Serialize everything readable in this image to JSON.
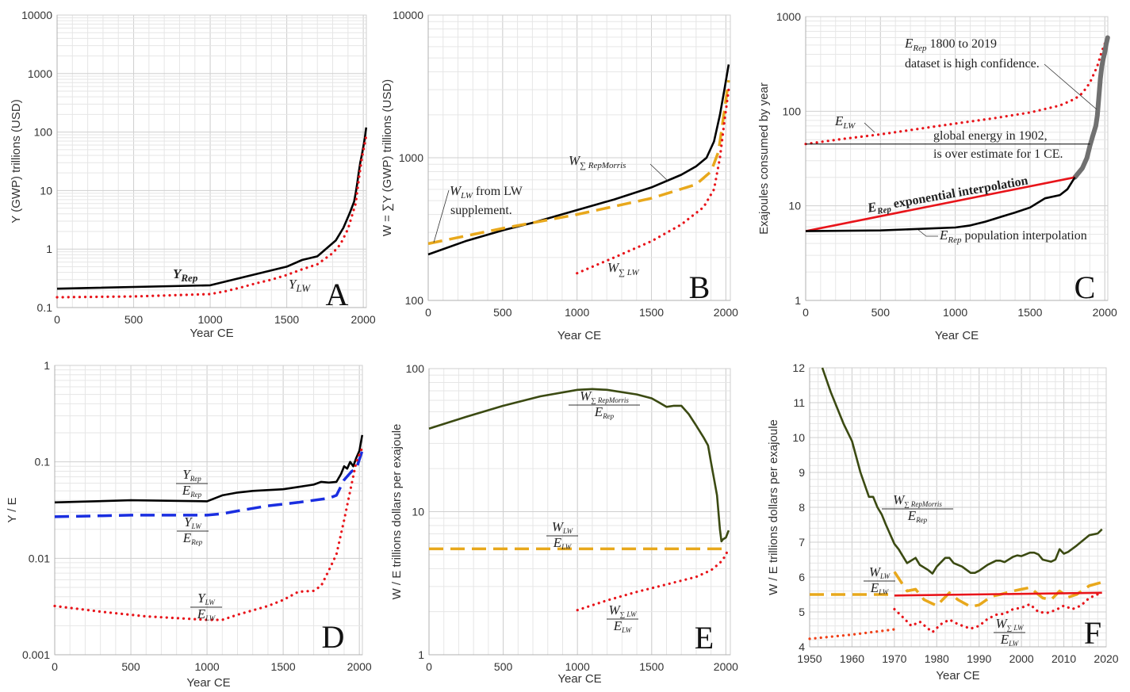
{
  "chart_data": [
    {
      "id": "A",
      "type": "line",
      "panel_label": "A",
      "xlabel": "Year CE",
      "ylabel": "Y (GWP) trillions (USD)",
      "yscale": "log",
      "xlim": [
        0,
        2020
      ],
      "ylim": [
        0.1,
        10000
      ],
      "xticks": [
        "0",
        "500",
        "1000",
        "1500",
        "2000"
      ],
      "yticks": [
        "0.1",
        "1",
        "10",
        "100",
        "1000",
        "10000"
      ],
      "grid": true,
      "series": [
        {
          "name": "Y_Rep",
          "label": "Y",
          "label_sub": "Rep",
          "color": "#000000",
          "style": "solid",
          "x": [
            0,
            1000,
            1500,
            1600,
            1700,
            1820,
            1870,
            1900,
            1913,
            1940,
            1950,
            1960,
            1970,
            1980,
            1990,
            2000,
            2010,
            2019
          ],
          "y": [
            0.21,
            0.24,
            0.5,
            0.65,
            0.75,
            1.4,
            2.3,
            3.5,
            4.2,
            6.5,
            9,
            13,
            20,
            30,
            40,
            55,
            80,
            120
          ]
        },
        {
          "name": "Y_LW",
          "label": "Y",
          "label_sub": "LW",
          "color": "#e8141a",
          "style": "dotted",
          "x": [
            0,
            500,
            1000,
            1100,
            1200,
            1300,
            1400,
            1500,
            1600,
            1700,
            1800,
            1850,
            1900,
            1950,
            1970,
            1990,
            2019
          ],
          "y": [
            0.15,
            0.155,
            0.17,
            0.19,
            0.22,
            0.26,
            0.3,
            0.36,
            0.45,
            0.55,
            0.85,
            1.2,
            2.2,
            6,
            15,
            35,
            85
          ]
        }
      ]
    },
    {
      "id": "B",
      "type": "line",
      "panel_label": "B",
      "xlabel": "Year CE",
      "ylabel": "W = ∑Y (GWP) trillions (USD)",
      "yscale": "log",
      "xlim": [
        0,
        2030
      ],
      "ylim": [
        100,
        10000
      ],
      "xticks": [
        "0",
        "500",
        "1000",
        "1500",
        "2000"
      ],
      "yticks": [
        "100",
        "1000",
        "10000"
      ],
      "grid": true,
      "annotations": [
        {
          "text_var": "W",
          "text_sub": "LW",
          "text_rest": " from ",
          "text_var2": "LW",
          "line2": "supplement."
        },
        {
          "text_var": "W",
          "text_sub": "∑ RepMorris"
        },
        {
          "text_var": "W",
          "text_sub": "∑ LW"
        }
      ],
      "series": [
        {
          "name": "W_sum_RepMorris",
          "color": "#000000",
          "style": "solid",
          "x": [
            0,
            250,
            500,
            700,
            1000,
            1250,
            1500,
            1700,
            1800,
            1870,
            1920,
            1960,
            1990,
            2019
          ],
          "y": [
            210,
            260,
            310,
            350,
            430,
            510,
            620,
            760,
            870,
            1000,
            1300,
            2000,
            3000,
            4500
          ]
        },
        {
          "name": "W_LW",
          "color": "#e8a81c",
          "style": "dashed",
          "x": [
            0,
            500,
            1000,
            1500,
            1800,
            1900,
            1950,
            1980,
            2019
          ],
          "y": [
            250,
            320,
            400,
            520,
            650,
            800,
            1100,
            1800,
            3500
          ]
        },
        {
          "name": "W_sum_LW",
          "color": "#e8141a",
          "style": "dotted",
          "x": [
            1000,
            1250,
            1500,
            1700,
            1850,
            1920,
            1960,
            1990,
            2019
          ],
          "y": [
            155,
            200,
            260,
            340,
            450,
            600,
            1000,
            1800,
            3000
          ]
        }
      ]
    },
    {
      "id": "C",
      "type": "line",
      "panel_label": "C",
      "xlabel": "Year CE",
      "ylabel": "Exajoules consumed by year",
      "yscale": "log",
      "xlim": [
        0,
        2020
      ],
      "ylim": [
        1,
        1000
      ],
      "xticks": [
        "0",
        "500",
        "1000",
        "1500",
        "2000"
      ],
      "yticks": [
        "1",
        "10",
        "100",
        "1000"
      ],
      "grid": true,
      "annotations": [
        {
          "text_var": "E",
          "text_sub": "Rep",
          "text_rest": " 1800 to 2019",
          "line2": "dataset is high confidence."
        },
        {
          "text_var": "E",
          "text_sub": "LW"
        },
        {
          "text": "global energy in 1902,",
          "line2": "is over estimate for 1 CE."
        },
        {
          "text_var": "E",
          "text_sub": "Rep",
          "text_rest": " exponential interpolation"
        },
        {
          "text_var": "E",
          "text_sub": "Rep",
          "text_rest": "  population interpolation"
        }
      ],
      "series": [
        {
          "name": "E_LW",
          "color": "#e8141a",
          "style": "dotted",
          "x": [
            0,
            250,
            500,
            750,
            1000,
            1250,
            1500,
            1700,
            1800,
            1850,
            1900,
            1950,
            1980,
            2019
          ],
          "y": [
            45,
            51,
            57,
            65,
            74,
            84,
            97,
            115,
            135,
            155,
            200,
            300,
            430,
            620
          ]
        },
        {
          "name": "E_Rep_high_confidence",
          "color": "#707070",
          "style": "thick",
          "x": [
            1800,
            1850,
            1880,
            1900,
            1920,
            1940,
            1950,
            1960,
            1970,
            1980,
            1990,
            2000,
            2010,
            2019
          ],
          "y": [
            20,
            25,
            32,
            43,
            55,
            70,
            90,
            140,
            220,
            300,
            360,
            420,
            520,
            600
          ]
        },
        {
          "name": "E_Rep_exponential_interpolation",
          "color": "#e8141a",
          "style": "solid",
          "x": [
            0,
            1800
          ],
          "y": [
            5.4,
            20
          ]
        },
        {
          "name": "E_Rep_population_interpolation",
          "color": "#000000",
          "style": "solid",
          "x": [
            0,
            500,
            1000,
            1100,
            1200,
            1300,
            1400,
            1500,
            1600,
            1700,
            1750,
            1800
          ],
          "y": [
            5.4,
            5.5,
            5.9,
            6.2,
            6.8,
            7.6,
            8.5,
            9.6,
            12,
            13,
            15,
            20
          ]
        },
        {
          "name": "global_energy_1902",
          "color": "#000000",
          "style": "thin",
          "x": [
            0,
            1902
          ],
          "y": [
            45,
            45
          ]
        }
      ]
    },
    {
      "id": "D",
      "type": "line",
      "panel_label": "D",
      "xlabel": "Year CE",
      "ylabel": "Y / E",
      "yscale": "log",
      "xlim": [
        0,
        2020
      ],
      "ylim": [
        0.001,
        1
      ],
      "xticks": [
        "0",
        "500",
        "1000",
        "1500",
        "2000"
      ],
      "yticks": [
        "0.001",
        "0.01",
        "0.1",
        "1"
      ],
      "grid": true,
      "annotations": [
        {
          "num_var": "Y",
          "num_sub": "Rep",
          "den_var": "E",
          "den_sub": "Rep"
        },
        {
          "num_var": "Y",
          "num_sub": "LW",
          "den_var": "E",
          "den_sub": "Rep"
        },
        {
          "num_var": "Y",
          "num_sub": "LW",
          "den_var": "E",
          "den_sub": "LW"
        }
      ],
      "series": [
        {
          "name": "Y_Rep/E_Rep",
          "color": "#000000",
          "style": "solid",
          "x": [
            0,
            500,
            1000,
            1100,
            1200,
            1300,
            1500,
            1600,
            1700,
            1750,
            1800,
            1850,
            1880,
            1900,
            1920,
            1940,
            1960,
            1980,
            2000,
            2019
          ],
          "y": [
            0.038,
            0.04,
            0.039,
            0.045,
            0.048,
            0.05,
            0.052,
            0.055,
            0.058,
            0.062,
            0.061,
            0.062,
            0.075,
            0.09,
            0.085,
            0.1,
            0.09,
            0.11,
            0.13,
            0.19
          ]
        },
        {
          "name": "Y_LW/E_Rep",
          "color": "#1a2ee0",
          "style": "dashed",
          "x": [
            0,
            500,
            1000,
            1100,
            1200,
            1400,
            1600,
            1800,
            1850,
            1900,
            1950,
            1980,
            2019
          ],
          "y": [
            0.027,
            0.028,
            0.028,
            0.029,
            0.031,
            0.035,
            0.038,
            0.042,
            0.045,
            0.065,
            0.08,
            0.085,
            0.13
          ]
        },
        {
          "name": "Y_LW/E_LW",
          "color": "#e8141a",
          "style": "dotted",
          "x": [
            0,
            300,
            600,
            1000,
            1100,
            1200,
            1400,
            1500,
            1600,
            1700,
            1750,
            1800,
            1850,
            1900,
            1950,
            1980,
            2019
          ],
          "y": [
            0.0032,
            0.0028,
            0.0025,
            0.0023,
            0.0023,
            0.0026,
            0.0032,
            0.0037,
            0.0045,
            0.0046,
            0.0052,
            0.0075,
            0.011,
            0.025,
            0.06,
            0.1,
            0.14
          ]
        }
      ]
    },
    {
      "id": "E",
      "type": "line",
      "panel_label": "E",
      "xlabel": "Year CE",
      "ylabel": "W / E  trillions dollars per exajoule",
      "yscale": "log",
      "xlim": [
        0,
        2030
      ],
      "ylim": [
        1,
        100
      ],
      "xticks": [
        "0",
        "500",
        "1000",
        "1500",
        "2000"
      ],
      "yticks": [
        "1",
        "10",
        "100"
      ],
      "grid": true,
      "annotations": [
        {
          "num_var": "W",
          "num_sub": "∑ RepMorris",
          "den_var": "E",
          "den_sub": "Rep"
        },
        {
          "num_var": "W",
          "num_sub": "LW",
          "den_var": "E",
          "den_sub": "LW"
        },
        {
          "num_var": "W",
          "num_sub": "∑ LW",
          "den_var": "E",
          "den_sub": "LW"
        }
      ],
      "series": [
        {
          "name": "W_sum_RepMorris/E_Rep",
          "color": "#3b4a12",
          "style": "solid",
          "x": [
            0,
            250,
            500,
            750,
            1000,
            1100,
            1200,
            1400,
            1500,
            1550,
            1600,
            1650,
            1700,
            1750,
            1800,
            1850,
            1880,
            1900,
            1920,
            1940,
            1960,
            1970,
            1980,
            2000,
            2019
          ],
          "y": [
            38,
            46,
            55,
            64,
            71,
            72,
            71,
            66,
            62,
            58,
            54,
            55,
            55,
            48,
            40,
            33,
            29,
            22,
            17,
            13,
            7.5,
            6.2,
            6.4,
            6.6,
            7.4
          ]
        },
        {
          "name": "W_LW/E_LW",
          "color": "#e8a81c",
          "style": "dashed",
          "x": [
            0,
            2019
          ],
          "y": [
            5.5,
            5.5
          ]
        },
        {
          "name": "W_sum_LW/E_LW",
          "color": "#e8141a",
          "style": "dotted",
          "x": [
            1000,
            1200,
            1400,
            1600,
            1800,
            1900,
            1950,
            1970,
            1990,
            2019
          ],
          "y": [
            2.05,
            2.4,
            2.75,
            3.1,
            3.5,
            3.9,
            4.3,
            4.5,
            4.8,
            5.5
          ]
        }
      ]
    },
    {
      "id": "F",
      "type": "line",
      "panel_label": "F",
      "xlabel": "Year CE",
      "ylabel": "W / E  trillions dollars per exajoule",
      "yscale": "linear",
      "xlim": [
        1950,
        2020
      ],
      "ylim": [
        4,
        12
      ],
      "xticks": [
        "1950",
        "1960",
        "1970",
        "1980",
        "1990",
        "2000",
        "2010",
        "2020"
      ],
      "yticks": [
        "4",
        "5",
        "6",
        "7",
        "8",
        "9",
        "10",
        "11",
        "12"
      ],
      "grid": true,
      "annotations": [
        {
          "num_var": "W",
          "num_sub": "∑ RepMorris",
          "den_var": "E",
          "den_sub": "Rep"
        },
        {
          "num_var": "W",
          "num_sub": "LW",
          "den_var": "E",
          "den_sub": "LW"
        },
        {
          "num_var": "W",
          "num_sub": "∑ LW",
          "den_var": "E",
          "den_sub": "LW"
        }
      ],
      "series": [
        {
          "name": "W_sum_RepMorris/E_Rep",
          "color": "#3b4a12",
          "style": "solid",
          "x": [
            1953,
            1955,
            1958,
            1960,
            1962,
            1964,
            1965,
            1966,
            1967,
            1968,
            1970,
            1971,
            1972,
            1973,
            1975,
            1976,
            1978,
            1979,
            1980,
            1982,
            1983,
            1984,
            1986,
            1988,
            1989,
            1990,
            1992,
            1994,
            1995,
            1996,
            1998,
            1999,
            2000,
            2002,
            2003,
            2004,
            2005,
            2007,
            2008,
            2009,
            2010,
            2011,
            2013,
            2014,
            2016,
            2018,
            2019
          ],
          "y": [
            12,
            11.3,
            10.4,
            9.9,
            9.0,
            8.3,
            8.3,
            8.0,
            7.8,
            7.5,
            6.95,
            6.8,
            6.6,
            6.4,
            6.55,
            6.35,
            6.2,
            6.1,
            6.3,
            6.55,
            6.55,
            6.4,
            6.3,
            6.12,
            6.12,
            6.18,
            6.35,
            6.47,
            6.47,
            6.43,
            6.58,
            6.62,
            6.6,
            6.7,
            6.7,
            6.65,
            6.5,
            6.44,
            6.5,
            6.8,
            6.67,
            6.72,
            6.9,
            7.0,
            7.2,
            7.25,
            7.37
          ]
        },
        {
          "name": "W_LW/E_LW (pre-1970)",
          "color": "#e8a81c",
          "style": "dashed",
          "x": [
            1950,
            1970
          ],
          "y": [
            5.5,
            5.5
          ]
        },
        {
          "name": "W_LW/E_LW",
          "color": "#e8a81c",
          "style": "dashed",
          "x": [
            1970,
            1973,
            1975,
            1977,
            1980,
            1983,
            1985,
            1988,
            1990,
            1993,
            1995,
            1998,
            2000,
            2002,
            2005,
            2007,
            2009,
            2011,
            2013,
            2016,
            2019
          ],
          "y": [
            6.15,
            5.6,
            5.65,
            5.35,
            5.18,
            5.55,
            5.35,
            5.15,
            5.2,
            5.45,
            5.5,
            5.6,
            5.65,
            5.7,
            5.4,
            5.35,
            5.6,
            5.42,
            5.5,
            5.75,
            5.85
          ]
        },
        {
          "name": "W_LW/E_LW linear",
          "color": "#e8141a",
          "style": "solid",
          "x": [
            1970,
            2019
          ],
          "y": [
            5.47,
            5.55
          ]
        },
        {
          "name": "W_sum_LW/E_LW (pre-1970)",
          "color": "#f04018",
          "style": "dotted",
          "x": [
            1950,
            1960,
            1970
          ],
          "y": [
            4.23,
            4.35,
            4.5
          ]
        },
        {
          "name": "W_sum_LW/E_LW",
          "color": "#e8141a",
          "style": "dotted",
          "x": [
            1970,
            1972,
            1974,
            1976,
            1979,
            1981,
            1983,
            1985,
            1988,
            1990,
            1992,
            1994,
            1996,
            1998,
            2000,
            2002,
            2004,
            2006,
            2008,
            2010,
            2012,
            2014,
            2016,
            2019
          ],
          "y": [
            5.08,
            4.85,
            4.6,
            4.72,
            4.42,
            4.65,
            4.78,
            4.65,
            4.52,
            4.6,
            4.8,
            4.92,
            4.95,
            5.08,
            5.12,
            5.22,
            5.0,
            4.97,
            5.05,
            5.18,
            5.08,
            5.18,
            5.4,
            5.56
          ]
        }
      ]
    }
  ]
}
